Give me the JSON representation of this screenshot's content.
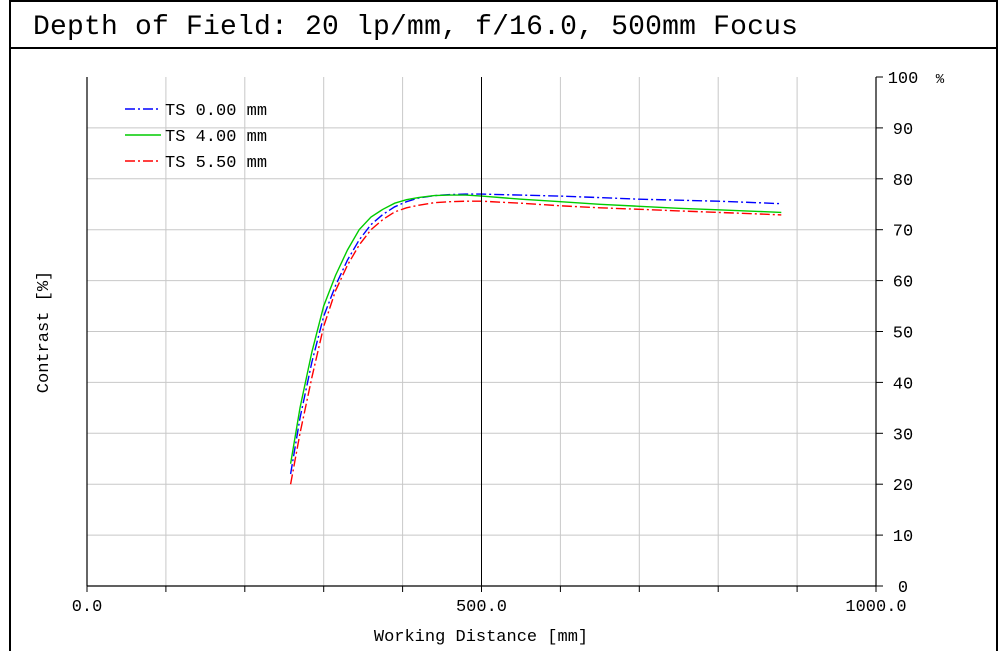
{
  "chart_data": {
    "type": "line",
    "title": "Depth of Field: 20 lp/mm, f/16.0, 500mm Focus",
    "xlabel": "Working Distance [mm]",
    "ylabel": "Contrast [%]",
    "xlim": [
      0,
      1000
    ],
    "ylim": [
      0,
      100
    ],
    "x_tick_labels": [
      {
        "value": 0,
        "label": "0.0"
      },
      {
        "value": 500,
        "label": "500.0"
      },
      {
        "value": 1000,
        "label": "1000.0"
      }
    ],
    "x_grid_step": 100,
    "y_ticks": [
      0,
      10,
      20,
      30,
      40,
      50,
      60,
      70,
      80,
      90,
      100
    ],
    "y_unit_label": "%",
    "y_axis_side": "right",
    "grid": true,
    "legend_position": "top-left",
    "vertical_marker_x": 500,
    "series": [
      {
        "name": "TS 0.00 mm",
        "color": "#0000ff",
        "dash": "dash-dot",
        "x": [
          258,
          270,
          285,
          300,
          315,
          330,
          345,
          360,
          375,
          390,
          405,
          420,
          440,
          460,
          480,
          500,
          550,
          600,
          650,
          700,
          750,
          800,
          850,
          880
        ],
        "y": [
          22,
          33,
          44,
          53,
          59,
          64,
          68,
          71,
          73,
          74.5,
          75.5,
          76.2,
          76.7,
          76.9,
          77,
          77,
          76.8,
          76.6,
          76.3,
          76,
          75.8,
          75.6,
          75.3,
          75.1
        ]
      },
      {
        "name": "TS 4.00 mm",
        "color": "#00cc00",
        "dash": "solid",
        "x": [
          258,
          270,
          285,
          300,
          315,
          330,
          345,
          360,
          375,
          390,
          405,
          420,
          440,
          460,
          480,
          500,
          550,
          600,
          650,
          700,
          750,
          800,
          850,
          880
        ],
        "y": [
          24,
          35,
          46,
          55,
          61,
          66,
          70,
          72.5,
          74,
          75.2,
          75.9,
          76.3,
          76.7,
          76.8,
          76.8,
          76.6,
          76,
          75.5,
          75,
          74.6,
          74.2,
          73.9,
          73.6,
          73.4
        ]
      },
      {
        "name": "TS 5.50 mm",
        "color": "#ff0000",
        "dash": "dash-dot",
        "x": [
          258,
          270,
          285,
          300,
          315,
          330,
          345,
          360,
          375,
          390,
          405,
          420,
          440,
          460,
          480,
          500,
          550,
          600,
          650,
          700,
          750,
          800,
          850,
          880
        ],
        "y": [
          20,
          30,
          41,
          51,
          58,
          63,
          67,
          70,
          72,
          73.5,
          74.3,
          74.8,
          75.3,
          75.5,
          75.6,
          75.6,
          75.2,
          74.7,
          74.3,
          74,
          73.7,
          73.4,
          73.1,
          72.9
        ]
      }
    ]
  }
}
